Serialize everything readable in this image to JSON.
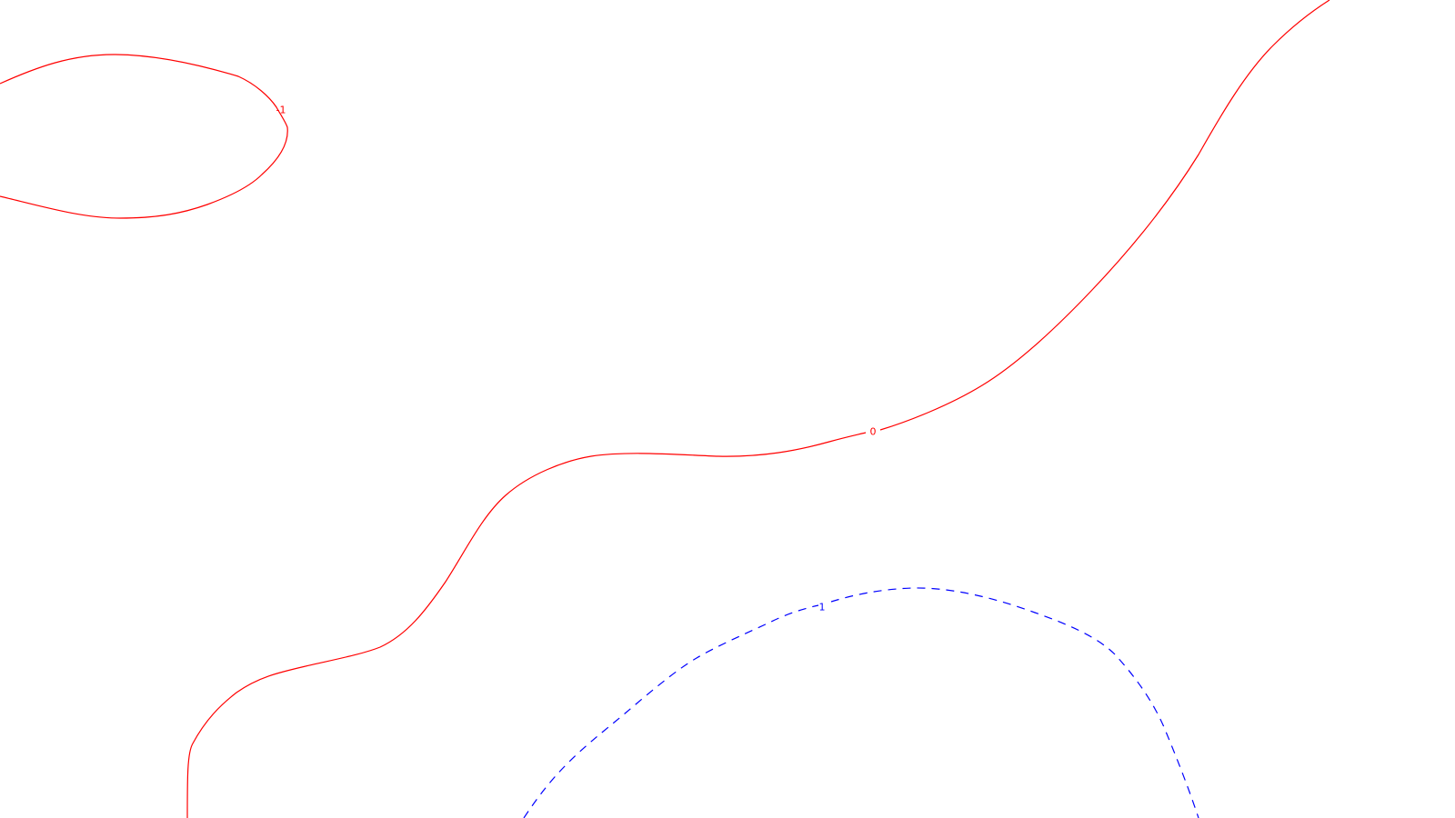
{
  "chart_data": {
    "type": "contour",
    "title": "",
    "xlabel": "",
    "ylabel": "",
    "grid": false,
    "levels": [
      {
        "id": "neg-1",
        "value": -1,
        "label": "-1",
        "color": "#ff0000",
        "style": "solid"
      },
      {
        "id": "zero",
        "value": 0,
        "label": "0",
        "color": "#ff0000",
        "style": "solid"
      },
      {
        "id": "pos-1",
        "value": 1,
        "label": "1",
        "color": "#0000ff",
        "style": "dashed"
      }
    ]
  }
}
